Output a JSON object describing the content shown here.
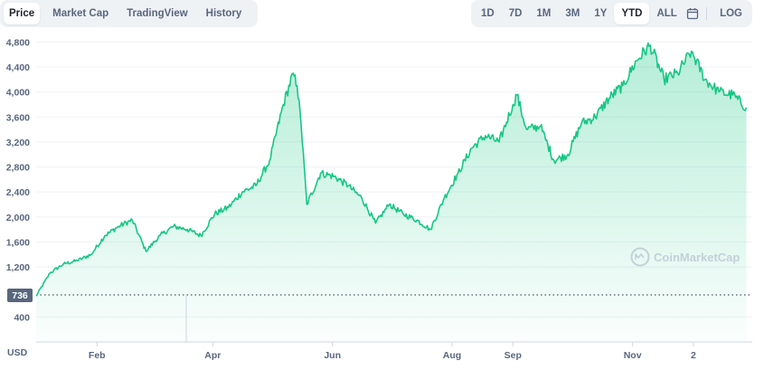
{
  "tabs": [
    "Price",
    "Market Cap",
    "TradingView",
    "History"
  ],
  "active_tab": "Price",
  "ranges": [
    "1D",
    "7D",
    "1M",
    "3M",
    "1Y",
    "YTD",
    "ALL"
  ],
  "active_range": "YTD",
  "log_label": "LOG",
  "icons": {
    "calendar": "calendar-icon",
    "logo": "coinmarketcap-logo-icon"
  },
  "watermark": "CoinMarketCap",
  "colors": {
    "line": "#16c784",
    "bg": "#ffffff",
    "tab_bg": "#eff2f5"
  },
  "chart_data": {
    "type": "area",
    "y_ticks": [
      400,
      1200,
      1600,
      2000,
      2400,
      2800,
      3200,
      3600,
      4000,
      4400,
      4800
    ],
    "ylim": [
      0,
      4950
    ],
    "ylabel": "USD",
    "x_ticks": [
      "Feb",
      "Apr",
      "Jun",
      "Aug",
      "Sep",
      "Nov",
      "2"
    ],
    "start_marker": "736",
    "grid": true,
    "series": [
      {
        "x": [
          "Jan 1",
          "Jan 8",
          "Jan 15",
          "Jan 22",
          "Jan 29",
          "Feb 5",
          "Feb 12",
          "Feb 19",
          "Feb 26",
          "Mar 5",
          "Mar 12",
          "Mar 19",
          "Mar 26",
          "Apr 2",
          "Apr 9",
          "Apr 16",
          "Apr 23",
          "Apr 30",
          "May 7",
          "May 12",
          "May 14",
          "May 16",
          "May 19",
          "May 26",
          "Jun 2",
          "Jun 9",
          "Jun 16",
          "Jun 23",
          "Jun 30",
          "Jul 7",
          "Jul 14",
          "Jul 21",
          "Jul 28",
          "Aug 4",
          "Aug 11",
          "Aug 18",
          "Aug 25",
          "Sep 1",
          "Sep 3",
          "Sep 8",
          "Sep 15",
          "Sep 22",
          "Sep 29",
          "Oct 6",
          "Oct 13",
          "Oct 20",
          "Oct 27",
          "Nov 3",
          "Nov 10",
          "Nov 17",
          "Nov 24",
          "Dec 1",
          "Dec 8",
          "Dec 15",
          "Dec 22",
          "Dec 29"
        ],
        "values": [
          736,
          1100,
          1250,
          1300,
          1400,
          1700,
          1850,
          1950,
          1450,
          1700,
          1850,
          1800,
          1700,
          2050,
          2150,
          2400,
          2500,
          2900,
          3800,
          4300,
          4100,
          3500,
          2200,
          2700,
          2650,
          2500,
          2300,
          1900,
          2200,
          2050,
          1950,
          1800,
          2300,
          2700,
          3100,
          3300,
          3200,
          3800,
          3950,
          3400,
          3450,
          2900,
          3000,
          3500,
          3600,
          3900,
          4100,
          4500,
          4750,
          4200,
          4300,
          4650,
          4200,
          4000,
          3950,
          3750
        ]
      }
    ]
  }
}
